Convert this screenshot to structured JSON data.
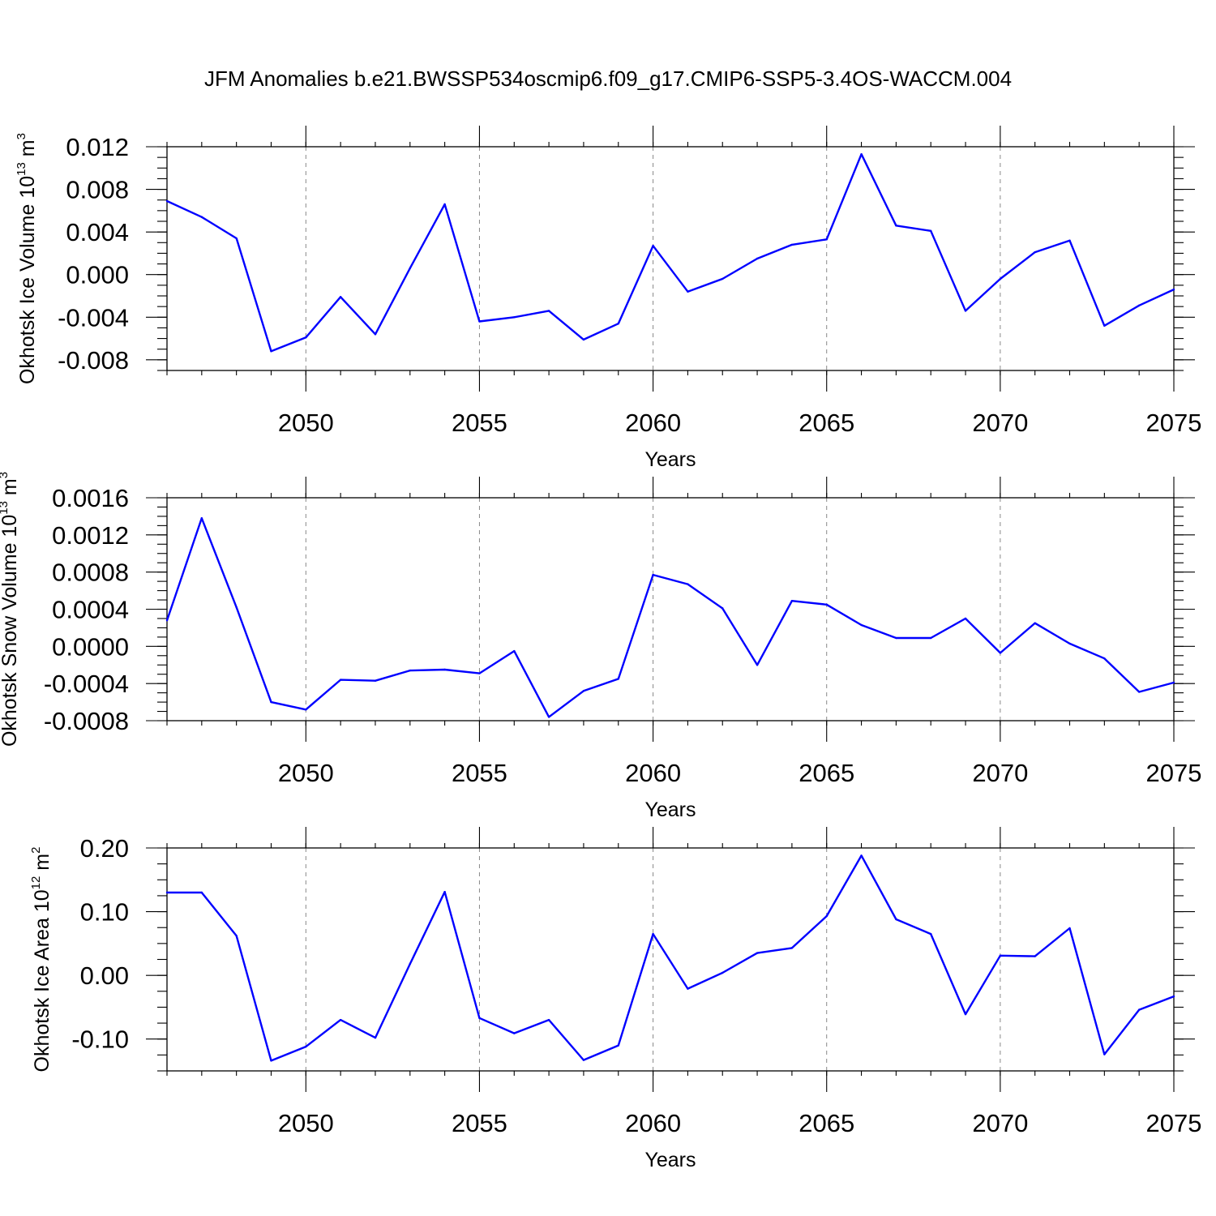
{
  "title": "JFM Anomalies b.e21.BWSSP534oscmip6.f09_g17.CMIP6-SSP5-3.4OS-WACCM.004",
  "chart_data": [
    {
      "type": "line",
      "xlabel": "Years",
      "ylabel": {
        "text": "Okhotsk Ice Volume 10",
        "exp": "13",
        "unit": " m",
        "unit_exp": "3"
      },
      "xlim": [
        2046,
        2075
      ],
      "ylim": [
        -0.009,
        0.012
      ],
      "xticks": [
        2050,
        2055,
        2060,
        2065,
        2070,
        2075
      ],
      "yticks": [
        {
          "value": 0.012,
          "label": "0.012"
        },
        {
          "value": 0.008,
          "label": "0.008"
        },
        {
          "value": 0.004,
          "label": "0.004"
        },
        {
          "value": 0.0,
          "label": "0.000"
        },
        {
          "value": -0.004,
          "label": "-0.004"
        },
        {
          "value": -0.008,
          "label": "-0.008"
        }
      ],
      "grid": "dashed vertical at major x ticks",
      "color": "#0000ff",
      "x": [
        2046,
        2047,
        2048,
        2049,
        2050,
        2051,
        2052,
        2053,
        2054,
        2055,
        2056,
        2057,
        2058,
        2059,
        2060,
        2061,
        2062,
        2063,
        2064,
        2065,
        2066,
        2067,
        2068,
        2069,
        2070,
        2071,
        2072,
        2073,
        2074,
        2075
      ],
      "values": [
        0.0069,
        0.0054,
        0.0034,
        -0.0072,
        -0.0059,
        -0.0021,
        -0.0056,
        0.0006,
        0.0066,
        -0.0044,
        -0.004,
        -0.0034,
        -0.0061,
        -0.0046,
        0.0027,
        -0.0016,
        -0.0004,
        0.0015,
        0.0028,
        0.0033,
        0.0113,
        0.0046,
        0.0041,
        -0.0034,
        -0.0004,
        0.0021,
        0.0032,
        -0.0048,
        -0.0029,
        -0.0014
      ]
    },
    {
      "type": "line",
      "xlabel": "Years",
      "ylabel": {
        "text": "Okhotsk Snow Volume 10",
        "exp": "13",
        "unit": " m",
        "unit_exp": "3"
      },
      "xlim": [
        2046,
        2075
      ],
      "ylim": [
        -0.0008,
        0.0016
      ],
      "xticks": [
        2050,
        2055,
        2060,
        2065,
        2070,
        2075
      ],
      "yticks": [
        {
          "value": 0.0016,
          "label": "0.0016"
        },
        {
          "value": 0.0012,
          "label": "0.0012"
        },
        {
          "value": 0.0008,
          "label": "0.0008"
        },
        {
          "value": 0.0004,
          "label": "0.0004"
        },
        {
          "value": 0.0,
          "label": "0.0000"
        },
        {
          "value": -0.0004,
          "label": "-0.0004"
        },
        {
          "value": -0.0008,
          "label": "-0.0008"
        }
      ],
      "grid": "dashed vertical at major x ticks",
      "color": "#0000ff",
      "x": [
        2046,
        2047,
        2048,
        2049,
        2050,
        2051,
        2052,
        2053,
        2054,
        2055,
        2056,
        2057,
        2058,
        2059,
        2060,
        2061,
        2062,
        2063,
        2064,
        2065,
        2066,
        2067,
        2068,
        2069,
        2070,
        2071,
        2072,
        2073,
        2074,
        2075
      ],
      "values": [
        0.00028,
        0.00138,
        0.00042,
        -0.0006,
        -0.00068,
        -0.00036,
        -0.00037,
        -0.00026,
        -0.00025,
        -0.00029,
        -5e-05,
        -0.00076,
        -0.00048,
        -0.00035,
        0.00077,
        0.00067,
        0.00041,
        -0.0002,
        0.00049,
        0.00045,
        0.00023,
        9e-05,
        9e-05,
        0.0003,
        -7e-05,
        0.00025,
        3e-05,
        -0.00013,
        -0.00049,
        -0.00039
      ]
    },
    {
      "type": "line",
      "xlabel": "Years",
      "ylabel": {
        "text": "Okhotsk Ice Area 10",
        "exp": "12",
        "unit": " m",
        "unit_exp": "2"
      },
      "xlim": [
        2046,
        2075
      ],
      "ylim": [
        -0.15,
        0.2
      ],
      "xticks": [
        2050,
        2055,
        2060,
        2065,
        2070,
        2075
      ],
      "yticks": [
        {
          "value": 0.2,
          "label": "0.20"
        },
        {
          "value": 0.1,
          "label": "0.10"
        },
        {
          "value": 0.0,
          "label": "0.00"
        },
        {
          "value": -0.1,
          "label": "-0.10"
        }
      ],
      "grid": "dashed vertical at major x ticks",
      "color": "#0000ff",
      "x": [
        2046,
        2047,
        2048,
        2049,
        2050,
        2051,
        2052,
        2053,
        2054,
        2055,
        2056,
        2057,
        2058,
        2059,
        2060,
        2061,
        2062,
        2063,
        2064,
        2065,
        2066,
        2067,
        2068,
        2069,
        2070,
        2071,
        2072,
        2073,
        2074,
        2075
      ],
      "values": [
        0.13,
        0.13,
        0.062,
        -0.134,
        -0.112,
        -0.07,
        -0.098,
        0.018,
        0.131,
        -0.067,
        -0.091,
        -0.07,
        -0.133,
        -0.11,
        0.065,
        -0.021,
        0.004,
        0.035,
        0.043,
        0.093,
        0.188,
        0.088,
        0.065,
        -0.061,
        0.031,
        0.03,
        0.074,
        -0.124,
        -0.054,
        -0.033
      ]
    }
  ]
}
